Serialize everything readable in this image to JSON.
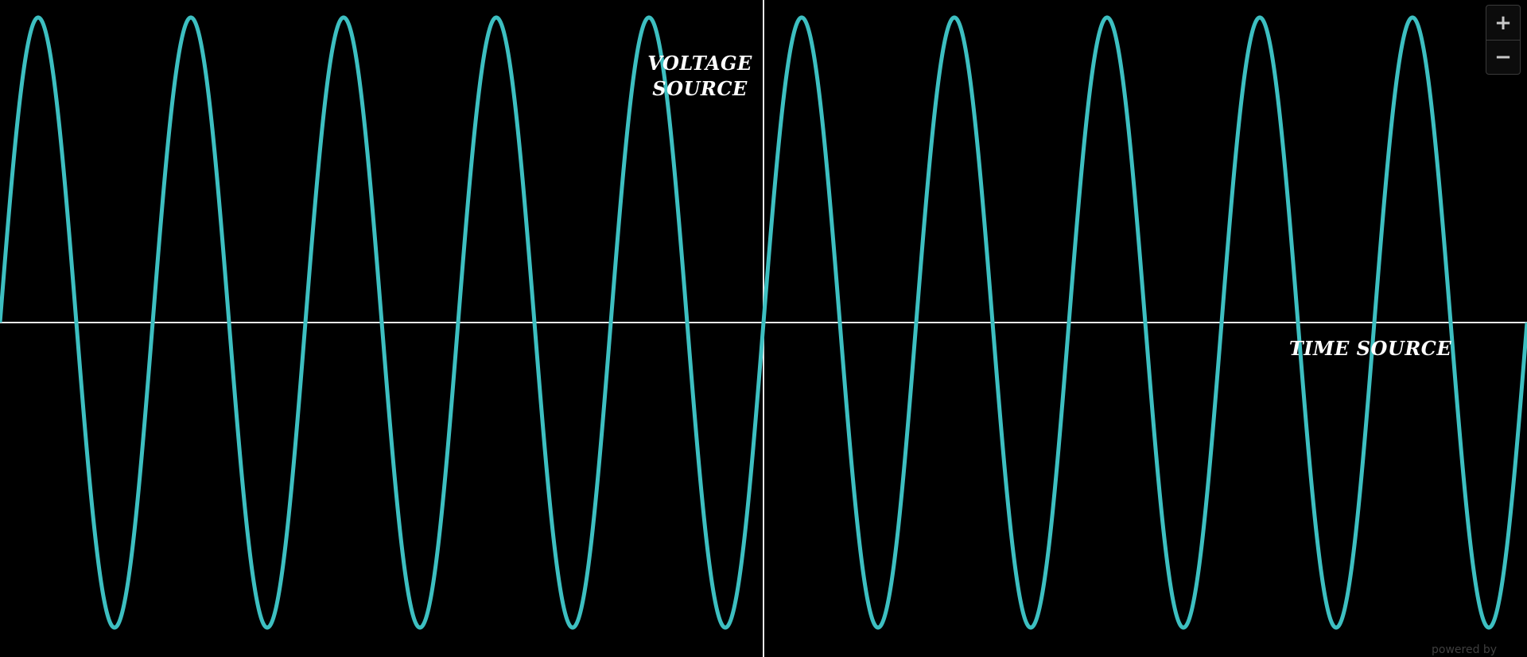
{
  "chart_data": {
    "type": "line",
    "title": "",
    "xlabel": "TIME SOURCE",
    "ylabel": "VOLTAGE SOURCE",
    "xlabel_text": "TIME SOURCE",
    "ylabel_lines": [
      "VOLTAGE",
      "SOURCE"
    ],
    "grid": false,
    "legend": "none",
    "series": [
      {
        "function": "sine",
        "amplitude": 1,
        "cycles_visible": 10,
        "color": "#3dbfc1"
      }
    ],
    "axis_color": "#e8e8e8"
  },
  "zoom": {
    "zoom_in_label": "+",
    "zoom_out_label": "−"
  },
  "footer": {
    "powered_by": "powered by"
  }
}
